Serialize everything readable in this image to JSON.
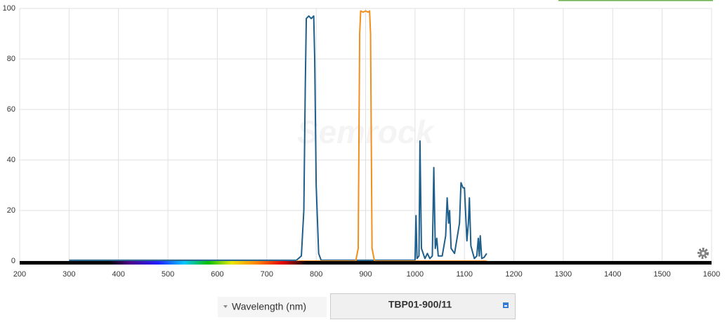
{
  "chart_data": {
    "type": "line",
    "watermark": "Semrock",
    "xlim": [
      200,
      1600
    ],
    "xticks": [
      200,
      300,
      400,
      500,
      600,
      700,
      800,
      900,
      1000,
      1100,
      1200,
      1300,
      1400,
      1500,
      1600
    ],
    "ylim": [
      0,
      100
    ],
    "yticks": [
      0,
      20,
      40,
      60,
      80,
      100
    ],
    "grid": true,
    "series": [
      {
        "color": "#1f5f8b",
        "x": [
          300,
          700,
          760,
          770,
          775,
          778,
          780,
          785,
          790,
          795,
          797,
          800,
          805,
          810,
          1000,
          1002,
          1004,
          1008,
          1010,
          1013,
          1020,
          1025,
          1030,
          1035,
          1038,
          1041,
          1044,
          1047,
          1055,
          1062,
          1065,
          1068,
          1070,
          1073,
          1080,
          1090,
          1093,
          1097,
          1100,
          1105,
          1108,
          1110,
          1113,
          1120,
          1125,
          1128,
          1130,
          1132,
          1135,
          1140,
          1145
        ],
        "values": [
          0.3,
          0.3,
          0.3,
          2,
          20,
          70,
          96,
          97,
          96,
          97,
          80,
          30,
          3,
          0.3,
          0.3,
          18,
          1,
          2,
          47.5,
          5,
          1,
          3,
          1,
          2,
          37,
          5,
          9,
          2,
          2,
          10,
          25,
          15,
          20,
          5,
          3,
          15,
          31,
          29,
          29,
          8,
          15,
          25,
          6,
          1,
          2,
          9,
          2,
          10,
          1,
          1.5,
          3
        ]
      },
      {
        "color": "#f28e1c",
        "x": [
          760,
          880,
          885,
          888,
          890,
          895,
          900,
          905,
          908,
          910,
          913,
          918,
          1145
        ],
        "values": [
          0,
          0,
          5,
          90,
          99,
          98.5,
          99,
          98.5,
          99,
          90,
          5,
          0,
          0
        ]
      }
    ]
  },
  "ui": {
    "axis_selector": "Wavelength (nm)",
    "filter_button": "TBP01-900/11"
  }
}
